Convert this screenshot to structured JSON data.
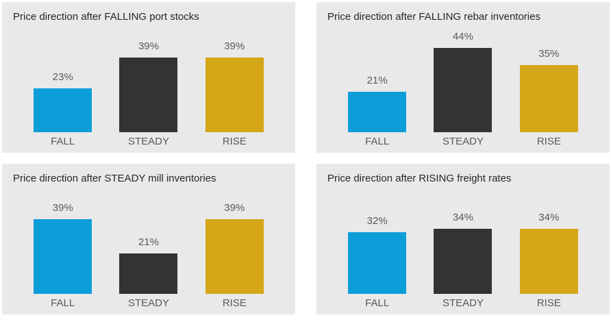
{
  "colors": {
    "page_background": "#ffffff",
    "panel_background": "#e9e9e9",
    "title_text": "#262626",
    "label_text": "#595959",
    "fall_bar": "#0d9dd9",
    "steady_bar": "#333333",
    "rise_bar": "#d5a617"
  },
  "panels": [
    {
      "title": "Price direction after FALLING port stocks",
      "ymax": 50,
      "bars": [
        {
          "category": "FALL",
          "value": 23,
          "label": "23%"
        },
        {
          "category": "STEADY",
          "value": 39,
          "label": "39%"
        },
        {
          "category": "RISE",
          "value": 39,
          "label": "39%"
        }
      ]
    },
    {
      "title": "Price direction after FALLING rebar inventories",
      "ymax": 50,
      "bars": [
        {
          "category": "FALL",
          "value": 21,
          "label": "21%"
        },
        {
          "category": "STEADY",
          "value": 44,
          "label": "44%"
        },
        {
          "category": "RISE",
          "value": 35,
          "label": "35%"
        }
      ]
    },
    {
      "title": "Price direction after STEADY mill inventories",
      "ymax": 50,
      "bars": [
        {
          "category": "FALL",
          "value": 39,
          "label": "39%"
        },
        {
          "category": "STEADY",
          "value": 21,
          "label": "21%"
        },
        {
          "category": "RISE",
          "value": 39,
          "label": "39%"
        }
      ]
    },
    {
      "title": "Price direction after RISING freight rates",
      "ymax": 50,
      "bars": [
        {
          "category": "FALL",
          "value": 32,
          "label": "32%"
        },
        {
          "category": "STEADY",
          "value": 34,
          "label": "34%"
        },
        {
          "category": "RISE",
          "value": 34,
          "label": "34%"
        }
      ]
    }
  ],
  "chart_data": [
    {
      "type": "bar",
      "title": "Price direction after FALLING port stocks",
      "categories": [
        "FALL",
        "STEADY",
        "RISE"
      ],
      "values": [
        23,
        39,
        39
      ],
      "data_labels": [
        "23%",
        "39%",
        "39%"
      ],
      "unit": "%",
      "xlabel": "",
      "ylabel": "",
      "ylim": [
        0,
        50
      ],
      "grid": false,
      "legend": false,
      "bar_colors": [
        "#0d9dd9",
        "#333333",
        "#d5a617"
      ]
    },
    {
      "type": "bar",
      "title": "Price direction after FALLING rebar inventories",
      "categories": [
        "FALL",
        "STEADY",
        "RISE"
      ],
      "values": [
        21,
        44,
        35
      ],
      "data_labels": [
        "21%",
        "44%",
        "35%"
      ],
      "unit": "%",
      "xlabel": "",
      "ylabel": "",
      "ylim": [
        0,
        50
      ],
      "grid": false,
      "legend": false,
      "bar_colors": [
        "#0d9dd9",
        "#333333",
        "#d5a617"
      ]
    },
    {
      "type": "bar",
      "title": "Price direction after STEADY mill inventories",
      "categories": [
        "FALL",
        "STEADY",
        "RISE"
      ],
      "values": [
        39,
        21,
        39
      ],
      "data_labels": [
        "39%",
        "21%",
        "39%"
      ],
      "unit": "%",
      "xlabel": "",
      "ylabel": "",
      "ylim": [
        0,
        50
      ],
      "grid": false,
      "legend": false,
      "bar_colors": [
        "#0d9dd9",
        "#333333",
        "#d5a617"
      ]
    },
    {
      "type": "bar",
      "title": "Price direction after RISING freight rates",
      "categories": [
        "FALL",
        "STEADY",
        "RISE"
      ],
      "values": [
        32,
        34,
        34
      ],
      "data_labels": [
        "32%",
        "34%",
        "34%"
      ],
      "unit": "%",
      "xlabel": "",
      "ylabel": "",
      "ylim": [
        0,
        50
      ],
      "grid": false,
      "legend": false,
      "bar_colors": [
        "#0d9dd9",
        "#333333",
        "#d5a617"
      ]
    }
  ]
}
